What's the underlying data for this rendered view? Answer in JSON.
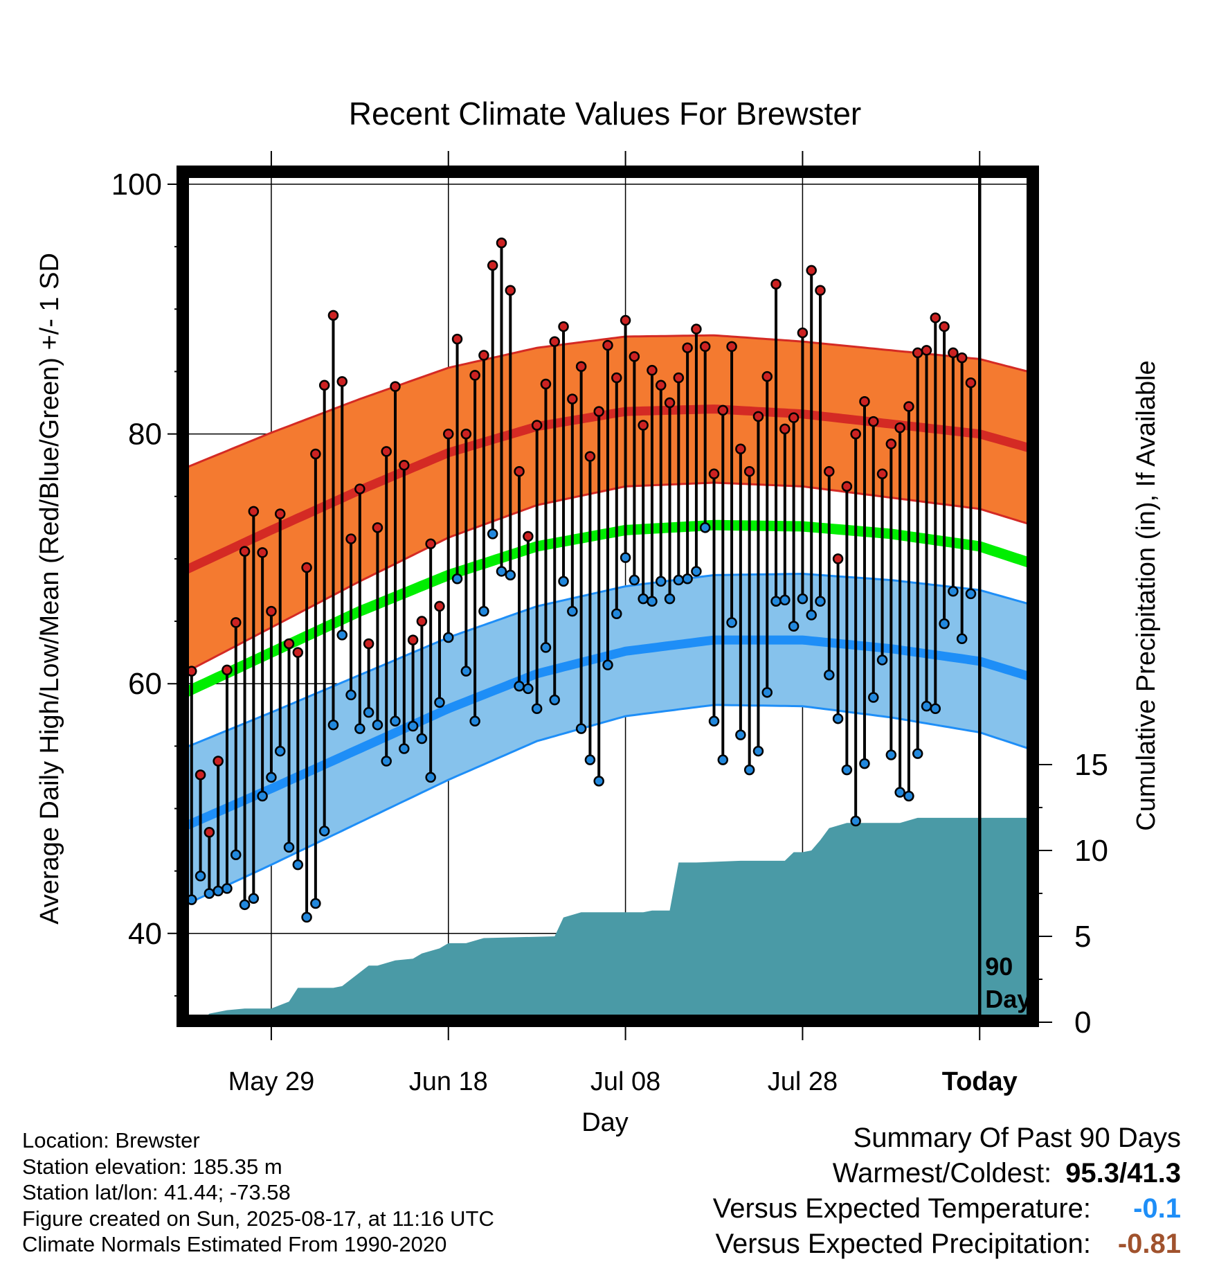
{
  "chart_data": {
    "type": "line",
    "title": "Recent Climate Values For Brewster",
    "xlabel": "Day",
    "ylabel": "Average Daily High/Low/Mean (Red/Blue/Green) +/- 1 SD",
    "y2label": "Cumulative Precipitation (in), If Available",
    "ylim": [
      33,
      101
    ],
    "y2lim": [
      0,
      60
    ],
    "yticks": [
      40,
      60,
      80,
      100
    ],
    "y2ticks": [
      0,
      5,
      10,
      15
    ],
    "x_range_days": [
      -89,
      7
    ],
    "x_tick_labels": [
      {
        "day": -79,
        "label": "May 29"
      },
      {
        "day": -59,
        "label": "Jun 18"
      },
      {
        "day": -39,
        "label": "Jul 08"
      },
      {
        "day": -19,
        "label": "Jul 28"
      },
      {
        "day": 1,
        "label": "Today"
      }
    ],
    "today_marker_label": "90\nDays",
    "grid": true,
    "colors": {
      "high_band": "#f47a30",
      "high_mean": "#d42a24",
      "high_band_edge": "#d42a24",
      "low_band": "#86c2ec",
      "low_mean": "#1e8ef7",
      "low_band_edge": "#1e8ef7",
      "mean": "#00ee00",
      "precip": "#4a9aa6",
      "high_dot": "#cc2222",
      "low_dot": "#2288dd"
    },
    "normals_days": [
      -89,
      -79,
      -69,
      -59,
      -49,
      -39,
      -29,
      -19,
      -9,
      1,
      7
    ],
    "normal_high": [
      69.0,
      72.3,
      75.5,
      78.5,
      80.6,
      81.8,
      82.0,
      81.6,
      80.8,
      80.0,
      78.8
    ],
    "normal_high_sd": [
      8.2,
      7.8,
      7.3,
      6.8,
      6.3,
      6.0,
      5.9,
      5.8,
      5.9,
      6.0,
      6.1
    ],
    "normal_low": [
      48.5,
      51.6,
      54.8,
      58.0,
      60.8,
      62.6,
      63.5,
      63.5,
      62.8,
      61.8,
      60.5
    ],
    "normal_low_sd": [
      6.3,
      6.1,
      5.9,
      5.7,
      5.4,
      5.2,
      5.2,
      5.3,
      5.5,
      5.7,
      5.8
    ],
    "normal_mean": [
      59.2,
      62.5,
      65.8,
      68.7,
      71.0,
      72.3,
      72.7,
      72.6,
      72.0,
      71.0,
      69.6
    ],
    "obs_days_start": -89,
    "obs_high": [
      66.7,
      61.0,
      52.7,
      48.1,
      53.8,
      61.1,
      64.9,
      70.6,
      73.8,
      70.5,
      65.8,
      73.6,
      63.2,
      62.5,
      69.3,
      78.4,
      83.9,
      89.5,
      84.2,
      71.6,
      75.6,
      63.2,
      72.5,
      78.6,
      83.8,
      77.5,
      63.5,
      65.0,
      71.2,
      66.2,
      80.0,
      87.6,
      80.0,
      84.7,
      86.3,
      93.5,
      95.3,
      91.5,
      77.0,
      71.8,
      80.7,
      84.0,
      87.4,
      88.6,
      82.8,
      85.4,
      78.2,
      81.8,
      87.1,
      84.5,
      89.1,
      86.2,
      80.7,
      85.1,
      83.9,
      82.5,
      84.5,
      86.9,
      88.4,
      87.0,
      76.8,
      81.9,
      87.0,
      78.8,
      77.0,
      81.4,
      84.6,
      92.0,
      80.4,
      81.3,
      88.1,
      93.1,
      91.5,
      77.0,
      70.0,
      75.8,
      80.0,
      82.6,
      81.0,
      76.8,
      79.2,
      80.5,
      82.2,
      86.5,
      86.7,
      89.3,
      88.6,
      86.5,
      86.1,
      84.1
    ],
    "obs_low": [
      45.4,
      42.7,
      44.6,
      43.2,
      43.4,
      43.6,
      46.3,
      42.3,
      42.8,
      51.0,
      52.5,
      54.6,
      46.9,
      45.5,
      41.3,
      42.4,
      48.2,
      56.7,
      63.9,
      59.1,
      56.4,
      57.7,
      56.7,
      53.8,
      57.0,
      54.8,
      56.6,
      55.6,
      52.5,
      58.5,
      63.7,
      68.4,
      61.0,
      57.0,
      65.8,
      72.0,
      69.0,
      68.7,
      59.8,
      59.6,
      58.0,
      62.9,
      58.7,
      68.2,
      65.8,
      56.4,
      53.9,
      52.2,
      61.5,
      65.6,
      70.1,
      68.3,
      66.8,
      66.6,
      68.2,
      66.8,
      68.3,
      68.4,
      69.0,
      72.5,
      57.0,
      53.9,
      64.9,
      55.9,
      53.1,
      54.6,
      59.3,
      66.6,
      66.7,
      64.6,
      66.8,
      65.5,
      66.6,
      60.7,
      57.2,
      53.1,
      49.0,
      53.6,
      58.9,
      61.9,
      54.3,
      51.3,
      51.0,
      54.4,
      58.2,
      58.0,
      64.8,
      67.4,
      63.6,
      67.2
    ],
    "precip_cumulative_days": [
      -87,
      -86,
      -84,
      -82,
      -79,
      -78,
      -77,
      -76,
      -72,
      -71,
      -70,
      -68,
      -67,
      -65,
      -63,
      -62,
      -60,
      -59,
      -57,
      -55,
      -47,
      -46,
      -44,
      -42,
      -37,
      -36,
      -34,
      -33,
      -31,
      -26,
      -21,
      -20,
      -19,
      -18,
      -17,
      -16,
      -14,
      -8,
      -6,
      7
    ],
    "precip_cumulative": [
      0.0,
      0.5,
      0.7,
      0.8,
      0.8,
      1.0,
      1.2,
      2.0,
      2.0,
      2.1,
      2.5,
      3.3,
      3.3,
      3.6,
      3.7,
      4.0,
      4.3,
      4.6,
      4.6,
      4.9,
      5.0,
      6.1,
      6.4,
      6.4,
      6.4,
      6.5,
      6.5,
      9.3,
      9.3,
      9.4,
      9.4,
      9.9,
      9.9,
      10.0,
      10.6,
      11.3,
      11.6,
      11.6,
      11.9,
      11.9
    ]
  },
  "info": {
    "location": "Location: Brewster",
    "elevation": "Station elevation: 185.35 m",
    "latlon": "Station lat/lon: 41.44; -73.58",
    "created": "Figure created on Sun, 2025-08-17, at 11:16 UTC",
    "normals": "Climate Normals Estimated From 1990-2020"
  },
  "summary": {
    "title": "Summary Of Past 90 Days",
    "warm_cold_label": "Warmest/Coldest:",
    "warm_cold_value": "95.3/41.3",
    "temp_label": "Versus Expected Temperature:",
    "temp_value": "-0.1",
    "temp_color": "#1e8ef7",
    "precip_label": "Versus Expected Precipitation:",
    "precip_value": "-0.81",
    "precip_color": "#a0522d"
  }
}
